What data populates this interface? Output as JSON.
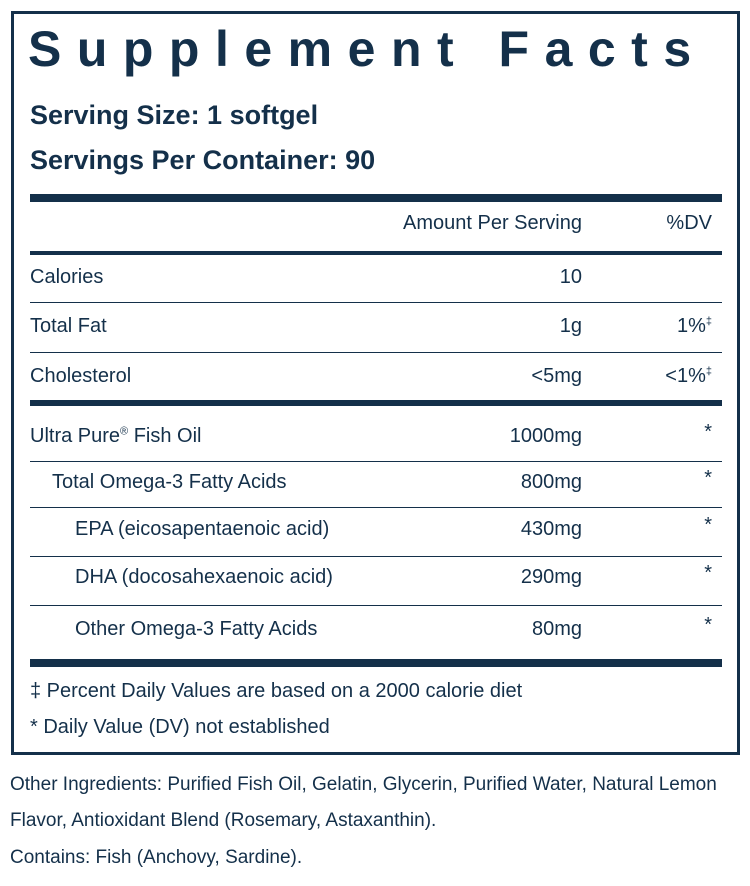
{
  "title": "Supplement Facts",
  "serving_size": "Serving Size: 1 softgel",
  "servings_per_container": "Servings Per Container: 90",
  "header": {
    "amount": "Amount Per Serving",
    "dv": "%DV"
  },
  "rows": [
    {
      "name": "Calories",
      "amount": "10"
    },
    {
      "name": "Total Fat",
      "amount": "1g",
      "dv": "1%",
      "dv_mark": "‡"
    },
    {
      "name": "Cholesterol",
      "amount": "<5mg",
      "dv": "<1%",
      "dv_mark": "‡"
    },
    {
      "name": [
        "Ultra Pure",
        "®",
        " Fish Oil"
      ],
      "amount": "1000mg",
      "dv": "*"
    },
    {
      "name": "Total Omega-3 Fatty Acids",
      "amount": "800mg",
      "dv": "*"
    },
    {
      "name": "EPA (eicosapentaenoic acid)",
      "amount": "430mg",
      "dv": "*"
    },
    {
      "name": "DHA (docosahexaenoic acid)",
      "amount": "290mg",
      "dv": "*"
    },
    {
      "name": "Other Omega-3 Fatty Acids",
      "amount": "80mg",
      "dv": "*"
    }
  ],
  "footnotes": [
    "‡ Percent Daily Values are based on a 2000 calorie diet",
    "* Daily Value (DV) not established"
  ],
  "other_ingredients": "Other Ingredients: Purified Fish Oil, Gelatin, Glycerin, Purified Water, Natural Lemon Flavor, Antioxidant Blend (Rosemary, Astaxanthin).",
  "contains": "Contains: Fish (Anchovy, Sardine)."
}
